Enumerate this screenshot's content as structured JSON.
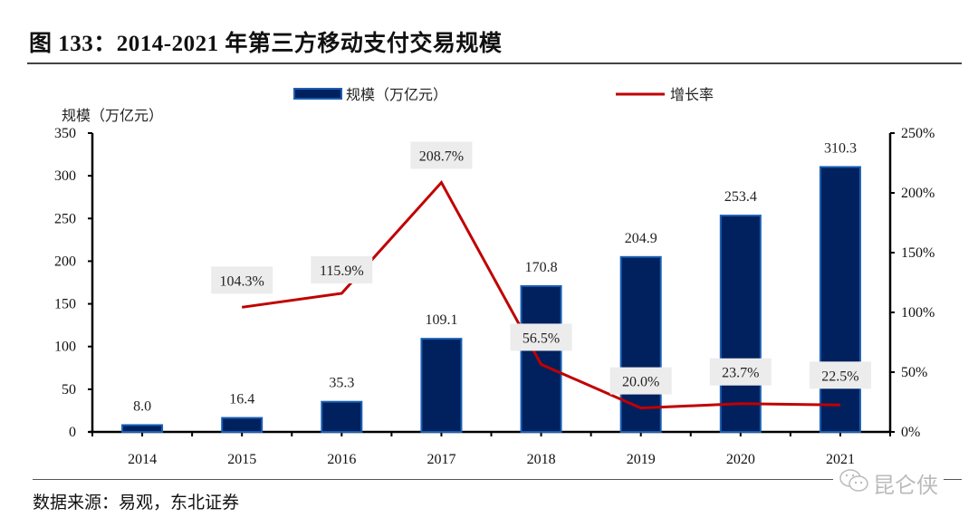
{
  "header": {
    "title": "图 133：2014-2021 年第三方移动支付交易规模"
  },
  "footer": {
    "source": "数据来源：易观，东北证券",
    "watermark": "昆仑侠"
  },
  "colors": {
    "bar_fill": "#00215e",
    "bar_edge": "#1a5fb4",
    "line": "#c00000",
    "label_bg": "#ececec"
  },
  "chart_data": {
    "type": "bar",
    "title": "2014-2021 年第三方移动支付交易规模",
    "categories": [
      "2014",
      "2015",
      "2016",
      "2017",
      "2018",
      "2019",
      "2020",
      "2021"
    ],
    "series": [
      {
        "name": "规模（万亿元）",
        "type": "bar",
        "axis": "left",
        "values": [
          8.0,
          16.4,
          35.3,
          109.1,
          170.8,
          204.9,
          253.4,
          310.3
        ],
        "labels": [
          "8.0",
          "16.4",
          "35.3",
          "109.1",
          "170.8",
          "204.9",
          "253.4",
          "310.3"
        ]
      },
      {
        "name": "增长率",
        "type": "line",
        "axis": "right",
        "values": [
          null,
          104.3,
          115.9,
          208.7,
          56.5,
          20.0,
          23.7,
          22.5
        ],
        "labels": [
          null,
          "104.3%",
          "115.9%",
          "208.7%",
          "56.5%",
          "20.0%",
          "23.7%",
          "22.5%"
        ]
      }
    ],
    "ylabel": "规模（万亿元）",
    "ylim": [
      0,
      350
    ],
    "yticks": [
      "0",
      "50",
      "100",
      "150",
      "200",
      "250",
      "300",
      "350"
    ],
    "yticks_values": [
      0,
      50,
      100,
      150,
      200,
      250,
      300,
      350
    ],
    "y2lim": [
      0,
      250
    ],
    "y2ticks": [
      "0%",
      "50%",
      "100%",
      "150%",
      "200%",
      "250%"
    ],
    "y2ticks_values": [
      0,
      50,
      100,
      150,
      200,
      250
    ],
    "legend": {
      "position": "top",
      "entries": [
        "规模（万亿元）",
        "增长率"
      ]
    },
    "grid": false
  }
}
